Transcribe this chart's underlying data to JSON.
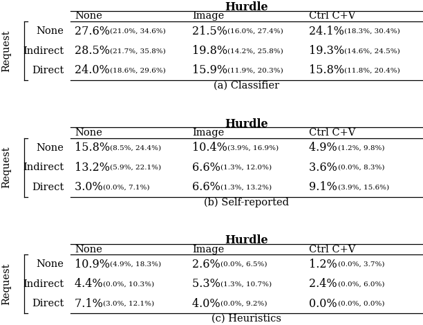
{
  "tables": [
    {
      "title": "Hurdle",
      "caption": "(a) Classifier",
      "col_headers": [
        "None",
        "Image",
        "Ctrl C+V"
      ],
      "row_headers": [
        "None",
        "Indirect",
        "Direct"
      ],
      "cells": [
        [
          [
            "27.6%",
            "(21.0%, 34.6%)"
          ],
          [
            "21.5%",
            "(16.0%, 27.4%)"
          ],
          [
            "24.1%",
            "(18.3%, 30.4%)"
          ]
        ],
        [
          [
            "28.5%",
            "(21.7%, 35.8%)"
          ],
          [
            "19.8%",
            "(14.2%, 25.8%)"
          ],
          [
            "19.3%",
            "(14.6%, 24.5%)"
          ]
        ],
        [
          [
            "24.0%",
            "(18.6%, 29.6%)"
          ],
          [
            "15.9%",
            "(11.9%, 20.3%)"
          ],
          [
            "15.8%",
            "(11.8%, 20.4%)"
          ]
        ]
      ]
    },
    {
      "title": "Hurdle",
      "caption": "(b) Self-reported",
      "col_headers": [
        "None",
        "Image",
        "Ctrl C+V"
      ],
      "row_headers": [
        "None",
        "Indirect",
        "Direct"
      ],
      "cells": [
        [
          [
            "15.8%",
            "(8.5%, 24.4%)"
          ],
          [
            "10.4%",
            "(3.9%, 16.9%)"
          ],
          [
            "4.9%",
            "(1.2%, 9.8%)"
          ]
        ],
        [
          [
            "13.2%",
            "(5.9%, 22.1%)"
          ],
          [
            "6.6%",
            "(1.3%, 12.0%)"
          ],
          [
            "3.6%",
            "(0.0%, 8.3%)"
          ]
        ],
        [
          [
            "3.0%",
            "(0.0%, 7.1%)"
          ],
          [
            "6.6%",
            "(1.3%, 13.2%)"
          ],
          [
            "9.1%",
            "(3.9%, 15.6%)"
          ]
        ]
      ]
    },
    {
      "title": "Hurdle",
      "caption": "(c) Heuristics",
      "col_headers": [
        "None",
        "Image",
        "Ctrl C+V"
      ],
      "row_headers": [
        "None",
        "Indirect",
        "Direct"
      ],
      "cells": [
        [
          [
            "10.9%",
            "(4.9%, 18.3%)"
          ],
          [
            "2.6%",
            "(0.0%, 6.5%)"
          ],
          [
            "1.2%",
            "(0.0%, 3.7%)"
          ]
        ],
        [
          [
            "4.4%",
            "(0.0%, 10.3%)"
          ],
          [
            "5.3%",
            "(1.3%, 10.7%)"
          ],
          [
            "2.4%",
            "(0.0%, 6.0%)"
          ]
        ],
        [
          [
            "7.1%",
            "(3.0%, 12.1%)"
          ],
          [
            "4.0%",
            "(0.0%, 9.2%)"
          ],
          [
            "0.0%",
            "(0.0%, 0.0%)"
          ]
        ]
      ]
    }
  ],
  "row_label": "Request",
  "bg_color": "#ffffff",
  "fs_main": 11.5,
  "fs_ci": 7.5,
  "fs_header": 10.5,
  "fs_title": 11.5,
  "fs_caption": 10.5
}
